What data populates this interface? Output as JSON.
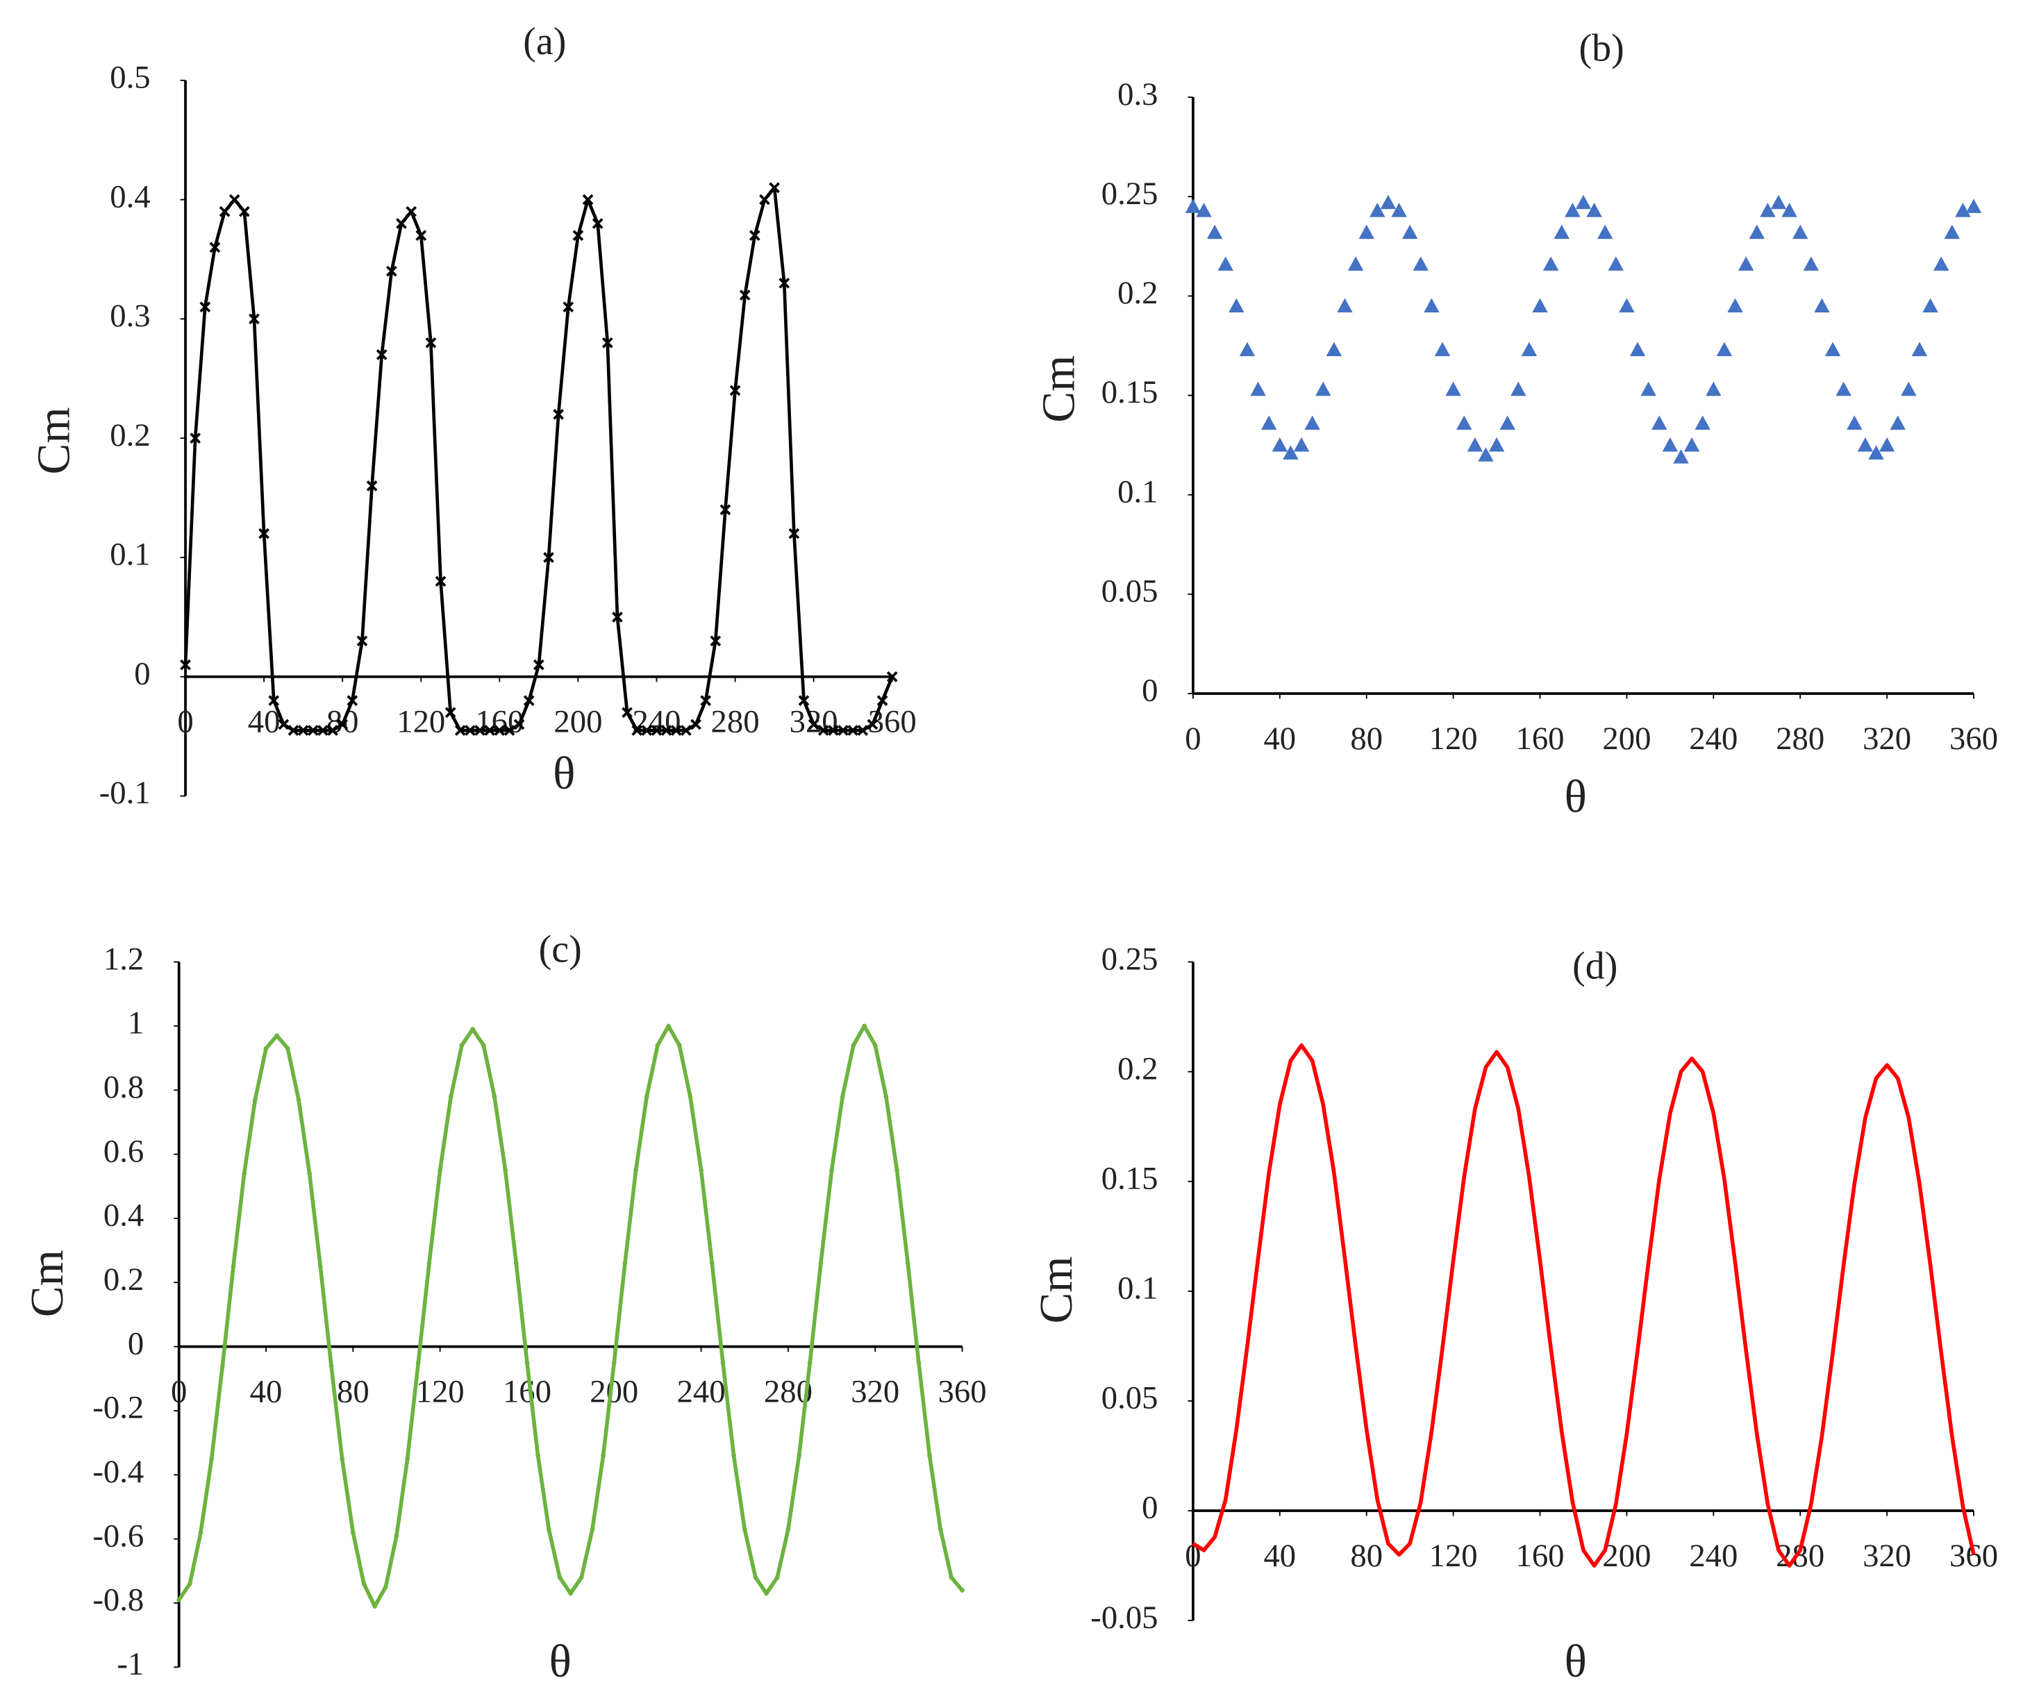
{
  "chart_data": [
    {
      "type": "line",
      "title": "(a)",
      "x_label": "θ",
      "y_label": "Cm",
      "color": "#000000",
      "marker": "x",
      "x": [
        0,
        5,
        10,
        15,
        20,
        25,
        30,
        35,
        40,
        45,
        50,
        55,
        60,
        65,
        70,
        75,
        80,
        85,
        90,
        95,
        100,
        105,
        110,
        115,
        120,
        125,
        130,
        135,
        140,
        145,
        150,
        155,
        160,
        165,
        170,
        175,
        180,
        185,
        190,
        195,
        200,
        205,
        210,
        215,
        220,
        225,
        230,
        235,
        240,
        245,
        250,
        255,
        260,
        265,
        270,
        275,
        280,
        285,
        290,
        295,
        300,
        305,
        310,
        315,
        320,
        325,
        330,
        335,
        340,
        345,
        350,
        355,
        360
      ],
      "values": [
        0.01,
        0.2,
        0.31,
        0.36,
        0.39,
        0.4,
        0.39,
        0.3,
        0.12,
        -0.02,
        -0.04,
        -0.045,
        -0.045,
        -0.045,
        -0.045,
        -0.045,
        -0.04,
        -0.02,
        0.03,
        0.16,
        0.27,
        0.34,
        0.38,
        0.39,
        0.37,
        0.28,
        0.08,
        -0.03,
        -0.045,
        -0.045,
        -0.045,
        -0.045,
        -0.045,
        -0.045,
        -0.04,
        -0.02,
        0.01,
        0.1,
        0.22,
        0.31,
        0.37,
        0.4,
        0.38,
        0.28,
        0.05,
        -0.03,
        -0.045,
        -0.045,
        -0.045,
        -0.045,
        -0.045,
        -0.045,
        -0.04,
        -0.02,
        0.03,
        0.14,
        0.24,
        0.32,
        0.37,
        0.4,
        0.41,
        0.33,
        0.12,
        -0.02,
        -0.04,
        -0.045,
        -0.045,
        -0.045,
        -0.045,
        -0.045,
        -0.04,
        -0.02,
        0
      ],
      "xlim": [
        0,
        360
      ],
      "xticks": [
        0,
        40,
        80,
        120,
        160,
        200,
        240,
        280,
        320,
        360
      ],
      "ylim": [
        -0.1,
        0.5
      ],
      "yticks": [
        -0.1,
        0,
        0.1,
        0.2,
        0.3,
        0.4,
        0.5
      ]
    },
    {
      "type": "line",
      "title": "(b)",
      "x_label": "θ",
      "y_label": "Cm",
      "color": "#4472c4",
      "marker": "triangle",
      "x": [
        0,
        5,
        10,
        15,
        20,
        25,
        30,
        35,
        40,
        45,
        50,
        55,
        60,
        65,
        70,
        75,
        80,
        85,
        90,
        95,
        100,
        105,
        110,
        115,
        120,
        125,
        130,
        135,
        140,
        145,
        150,
        155,
        160,
        165,
        170,
        175,
        180,
        185,
        190,
        195,
        200,
        205,
        210,
        215,
        220,
        225,
        230,
        235,
        240,
        245,
        250,
        255,
        260,
        265,
        270,
        275,
        280,
        285,
        290,
        295,
        300,
        305,
        310,
        315,
        320,
        325,
        330,
        335,
        340,
        345,
        350,
        355,
        360
      ],
      "values": [
        0.245,
        0.243,
        0.232,
        0.216,
        0.195,
        0.173,
        0.153,
        0.136,
        0.125,
        0.121,
        0.125,
        0.136,
        0.153,
        0.173,
        0.195,
        0.216,
        0.232,
        0.243,
        0.247,
        0.243,
        0.232,
        0.216,
        0.195,
        0.173,
        0.153,
        0.136,
        0.125,
        0.12,
        0.125,
        0.136,
        0.153,
        0.173,
        0.195,
        0.216,
        0.232,
        0.243,
        0.247,
        0.243,
        0.232,
        0.216,
        0.195,
        0.173,
        0.153,
        0.136,
        0.125,
        0.119,
        0.125,
        0.136,
        0.153,
        0.173,
        0.195,
        0.216,
        0.232,
        0.243,
        0.247,
        0.243,
        0.232,
        0.216,
        0.195,
        0.173,
        0.153,
        0.136,
        0.125,
        0.121,
        0.125,
        0.136,
        0.153,
        0.173,
        0.195,
        0.216,
        0.232,
        0.243,
        0.245
      ],
      "xlim": [
        0,
        360
      ],
      "xticks": [
        0,
        40,
        80,
        120,
        160,
        200,
        240,
        280,
        320,
        360
      ],
      "ylim": [
        0,
        0.3
      ],
      "yticks": [
        0,
        0.05,
        0.1,
        0.15,
        0.2,
        0.25,
        0.3
      ]
    },
    {
      "type": "line",
      "title": "(c)",
      "x_label": "θ",
      "y_label": "Cm",
      "color": "#6db33f",
      "marker": "dot",
      "x": [
        0,
        5,
        10,
        15,
        20,
        25,
        30,
        35,
        40,
        45,
        50,
        55,
        60,
        65,
        70,
        75,
        80,
        85,
        90,
        95,
        100,
        105,
        110,
        115,
        120,
        125,
        130,
        135,
        140,
        145,
        150,
        155,
        160,
        165,
        170,
        175,
        180,
        185,
        190,
        195,
        200,
        205,
        210,
        215,
        220,
        225,
        230,
        235,
        240,
        245,
        250,
        255,
        260,
        265,
        270,
        275,
        280,
        285,
        290,
        295,
        300,
        305,
        310,
        315,
        320,
        325,
        330,
        335,
        340,
        345,
        350,
        355,
        360
      ],
      "values": [
        -0.79,
        -0.74,
        -0.58,
        -0.35,
        -0.06,
        0.25,
        0.54,
        0.77,
        0.93,
        0.97,
        0.93,
        0.77,
        0.54,
        0.25,
        -0.06,
        -0.35,
        -0.58,
        -0.74,
        -0.81,
        -0.75,
        -0.59,
        -0.35,
        -0.05,
        0.26,
        0.55,
        0.78,
        0.94,
        0.99,
        0.94,
        0.78,
        0.55,
        0.26,
        -0.05,
        -0.34,
        -0.57,
        -0.72,
        -0.77,
        -0.72,
        -0.57,
        -0.34,
        -0.05,
        0.26,
        0.55,
        0.78,
        0.94,
        1.0,
        0.94,
        0.78,
        0.55,
        0.26,
        -0.05,
        -0.34,
        -0.57,
        -0.72,
        -0.77,
        -0.72,
        -0.57,
        -0.34,
        -0.05,
        0.26,
        0.55,
        0.78,
        0.94,
        1.0,
        0.94,
        0.78,
        0.55,
        0.26,
        -0.05,
        -0.34,
        -0.57,
        -0.72,
        -0.76
      ],
      "xlim": [
        0,
        360
      ],
      "xticks": [
        0,
        40,
        80,
        120,
        160,
        200,
        240,
        280,
        320,
        360
      ],
      "ylim": [
        -1,
        1.2
      ],
      "yticks": [
        -1,
        -0.8,
        -0.6,
        -0.4,
        -0.2,
        0,
        0.2,
        0.4,
        0.6,
        0.8,
        1,
        1.2
      ]
    },
    {
      "type": "line",
      "title": "(d)",
      "x_label": "θ",
      "y_label": "Cm",
      "color": "#ff0000",
      "marker": "none",
      "x": [
        0,
        5,
        10,
        15,
        20,
        25,
        30,
        35,
        40,
        45,
        50,
        55,
        60,
        65,
        70,
        75,
        80,
        85,
        90,
        95,
        100,
        105,
        110,
        115,
        120,
        125,
        130,
        135,
        140,
        145,
        150,
        155,
        160,
        165,
        170,
        175,
        180,
        185,
        190,
        195,
        200,
        205,
        210,
        215,
        220,
        225,
        230,
        235,
        240,
        245,
        250,
        255,
        260,
        265,
        270,
        275,
        280,
        285,
        290,
        295,
        300,
        305,
        310,
        315,
        320,
        325,
        330,
        335,
        340,
        345,
        350,
        355,
        360
      ],
      "values": [
        -0.015,
        -0.018,
        -0.012,
        0.005,
        0.037,
        0.075,
        0.115,
        0.154,
        0.185,
        0.205,
        0.212,
        0.205,
        0.185,
        0.154,
        0.115,
        0.075,
        0.037,
        0.005,
        -0.015,
        -0.02,
        -0.015,
        0.004,
        0.036,
        0.074,
        0.114,
        0.152,
        0.183,
        0.202,
        0.209,
        0.202,
        0.183,
        0.152,
        0.114,
        0.074,
        0.036,
        0.004,
        -0.018,
        -0.025,
        -0.018,
        0.003,
        0.035,
        0.073,
        0.113,
        0.151,
        0.181,
        0.2,
        0.206,
        0.2,
        0.181,
        0.151,
        0.113,
        0.073,
        0.035,
        0.003,
        -0.018,
        -0.025,
        -0.018,
        0.003,
        0.034,
        0.072,
        0.112,
        0.149,
        0.179,
        0.197,
        0.203,
        0.197,
        0.179,
        0.149,
        0.112,
        0.072,
        0.034,
        0.002,
        -0.02
      ],
      "xlim": [
        0,
        360
      ],
      "xticks": [
        0,
        40,
        80,
        120,
        160,
        200,
        240,
        280,
        320,
        360
      ],
      "ylim": [
        -0.05,
        0.25
      ],
      "yticks": [
        -0.05,
        0,
        0.05,
        0.1,
        0.15,
        0.2,
        0.25
      ]
    }
  ]
}
